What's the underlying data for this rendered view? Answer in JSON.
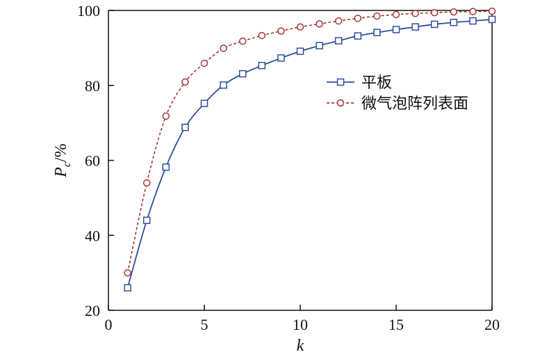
{
  "chart_data": {
    "type": "line",
    "xlabel": "k",
    "ylabel": {
      "main": "P",
      "sub": "c",
      "suffix": "/%"
    },
    "xlim": [
      0,
      20
    ],
    "ylim": [
      20,
      100
    ],
    "x_ticks": [
      0,
      5,
      10,
      15,
      20
    ],
    "y_ticks": [
      20,
      40,
      60,
      80,
      100
    ],
    "grid": false,
    "legend_position": "right",
    "x": [
      1,
      2,
      3,
      4,
      5,
      6,
      7,
      8,
      9,
      10,
      11,
      12,
      13,
      14,
      15,
      16,
      17,
      18,
      19,
      20
    ],
    "series": [
      {
        "name": "平板",
        "color": "#2e4f9a",
        "line": "solid",
        "marker": "square",
        "values": [
          26.0,
          44.0,
          58.2,
          68.8,
          75.2,
          80.1,
          83.1,
          85.3,
          87.3,
          89.1,
          90.6,
          91.9,
          93.2,
          94.1,
          94.9,
          95.6,
          96.3,
          96.8,
          97.2,
          97.6
        ]
      },
      {
        "name": "微气泡阵列表面",
        "color": "#a33434",
        "line": "dashed",
        "marker": "circle",
        "values": [
          30.0,
          54.0,
          71.8,
          80.9,
          85.9,
          89.9,
          91.8,
          93.3,
          94.5,
          95.6,
          96.4,
          97.2,
          97.9,
          98.5,
          98.9,
          99.2,
          99.4,
          99.6,
          99.7,
          99.8
        ]
      }
    ]
  }
}
